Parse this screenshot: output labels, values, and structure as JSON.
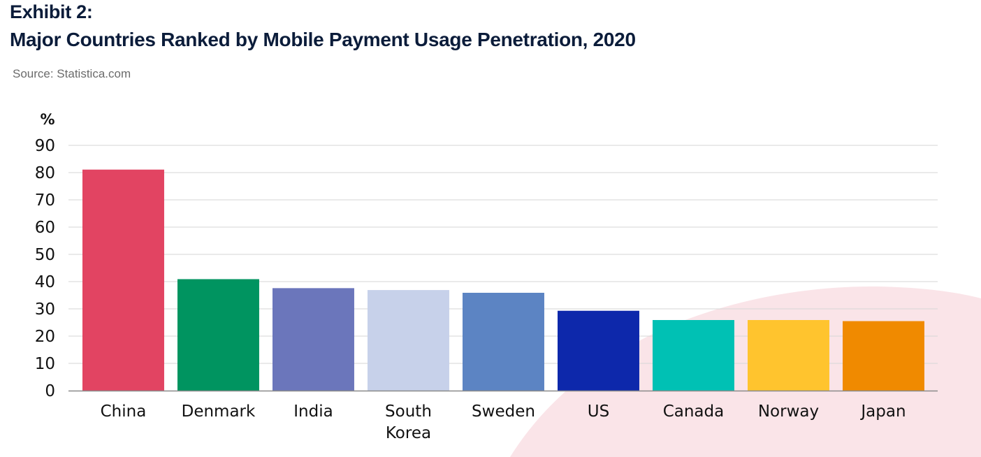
{
  "header": {
    "exhibit": "Exhibit 2:",
    "title": "Major Countries Ranked by Mobile Payment Usage Penetration, 2020",
    "source": "Source: Statistica.com"
  },
  "chart_data": {
    "type": "bar",
    "title": "Major Countries Ranked by Mobile Payment Usage Penetration, 2020",
    "xlabel": "",
    "ylabel": "%",
    "categories": [
      "China",
      "Denmark",
      "India",
      "South Korea",
      "Sweden",
      "US",
      "Canada",
      "Norway",
      "Japan"
    ],
    "category_lines": [
      [
        "China"
      ],
      [
        "Denmark"
      ],
      [
        "India"
      ],
      [
        "South",
        "Korea"
      ],
      [
        "Sweden"
      ],
      [
        "US"
      ],
      [
        "Canada"
      ],
      [
        "Norway"
      ],
      [
        "Japan"
      ]
    ],
    "values": [
      81.1,
      40.9,
      37.6,
      36.9,
      35.9,
      29.3,
      25.9,
      25.9,
      25.5
    ],
    "colors": [
      "#e24462",
      "#009460",
      "#6b76bb",
      "#c7d1ea",
      "#5c84c3",
      "#0d28ab",
      "#00c1b4",
      "#ffc42e",
      "#f08a00"
    ],
    "ylim": [
      0,
      90
    ],
    "yticks": [
      0,
      10,
      20,
      30,
      40,
      50,
      60,
      70,
      80,
      90
    ],
    "grid": true,
    "legend": "none",
    "background_accent": "#fae4e8"
  }
}
